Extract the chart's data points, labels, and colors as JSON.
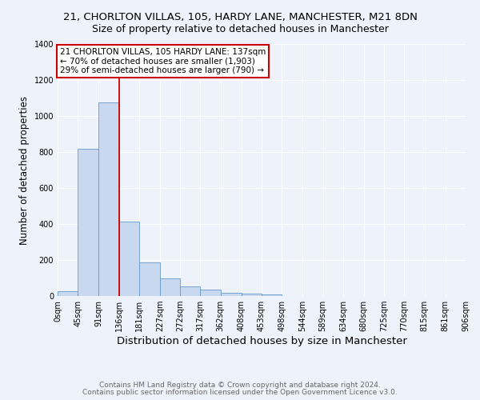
{
  "title_line1": "21, CHORLTON VILLAS, 105, HARDY LANE, MANCHESTER, M21 8DN",
  "title_line2": "Size of property relative to detached houses in Manchester",
  "xlabel": "Distribution of detached houses by size in Manchester",
  "ylabel": "Number of detached properties",
  "bin_edges": [
    0,
    45,
    91,
    136,
    181,
    227,
    272,
    317,
    362,
    408,
    453,
    498,
    544,
    589,
    634,
    680,
    725,
    770,
    815,
    861,
    906
  ],
  "bar_heights": [
    25,
    820,
    1075,
    415,
    185,
    100,
    55,
    35,
    20,
    15,
    10,
    0,
    0,
    0,
    0,
    0,
    0,
    0,
    0,
    0
  ],
  "bar_color": "#c8d8ee",
  "bar_edge_color": "#6699cc",
  "property_line_x": 136,
  "property_line_color": "#cc0000",
  "ylim": [
    0,
    1400
  ],
  "xlim": [
    0,
    906
  ],
  "annotation_text": "21 CHORLTON VILLAS, 105 HARDY LANE: 137sqm\n← 70% of detached houses are smaller (1,903)\n29% of semi-detached houses are larger (790) →",
  "annotation_box_color": "#cc0000",
  "annotation_bg_color": "#ffffff",
  "footnote_line1": "Contains HM Land Registry data © Crown copyright and database right 2024.",
  "footnote_line2": "Contains public sector information licensed under the Open Government Licence v3.0.",
  "background_color": "#eef2fb",
  "grid_color": "#ffffff",
  "title_fontsize": 9.5,
  "subtitle_fontsize": 9,
  "xlabel_fontsize": 9.5,
  "ylabel_fontsize": 8.5,
  "tick_fontsize": 7,
  "annotation_fontsize": 7.5,
  "footnote_fontsize": 6.5
}
